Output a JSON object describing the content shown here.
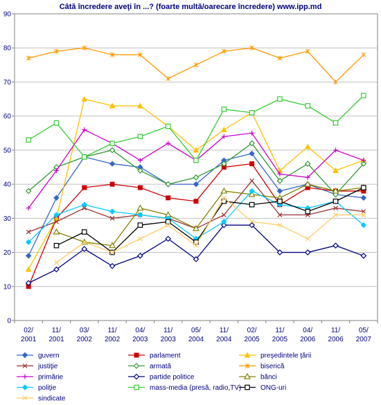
{
  "chart_data": {
    "type": "line",
    "title": "Câtă încredere aveţi în ...? (foarte multă/oarecare încredere) www.ipp.md",
    "xlabel": "",
    "ylabel": "",
    "ylim": [
      0,
      90
    ],
    "yticks": [
      0,
      10,
      20,
      30,
      40,
      50,
      60,
      70,
      80,
      90
    ],
    "grid": true,
    "legend_position": "bottom",
    "categories": [
      "02/\n2001",
      "11/\n2001",
      "03/\n2002",
      "11/\n2002",
      "04/\n2003",
      "11/\n2003",
      "05/\n2004",
      "11/\n2004",
      "02/\n2005",
      "11/\n2005",
      "04/\n2006",
      "11/\n2006",
      "05/\n2007"
    ],
    "series": [
      {
        "name": "guvern",
        "color": "#3366CC",
        "marker": "diamond",
        "values": [
          19,
          36,
          48,
          46,
          45,
          40,
          40,
          47,
          49,
          38,
          40,
          37,
          36
        ]
      },
      {
        "name": "parlament",
        "color": "#CC0000",
        "marker": "square",
        "values": [
          10,
          30,
          39,
          40,
          39,
          36,
          35,
          45,
          46,
          34,
          39,
          38,
          38
        ]
      },
      {
        "name": "preşedintele ţării",
        "color": "#FFC000",
        "marker": "triangle",
        "values": [
          15,
          30,
          65,
          63,
          63,
          57,
          50,
          56,
          61,
          44,
          51,
          44,
          47
        ]
      },
      {
        "name": "justiţie",
        "color": "#993333",
        "marker": "x",
        "values": [
          26,
          29,
          33,
          30,
          31,
          30,
          27,
          31,
          41,
          31,
          31,
          33,
          32
        ]
      },
      {
        "name": "armată",
        "color": "#339933",
        "marker": "diamond-open",
        "values": [
          38,
          45,
          48,
          50,
          44,
          40,
          42,
          46,
          52,
          41,
          46,
          37,
          46
        ]
      },
      {
        "name": "biserică",
        "color": "#FF9900",
        "marker": "star",
        "values": [
          77,
          79,
          80,
          78,
          78,
          71,
          75,
          79,
          80,
          77,
          79,
          70,
          78
        ]
      },
      {
        "name": "primărie",
        "color": "#CC00CC",
        "marker": "plus",
        "values": [
          33,
          44,
          56,
          52,
          47,
          52,
          47,
          54,
          55,
          43,
          42,
          50,
          47
        ]
      },
      {
        "name": "partide politice",
        "color": "#000080",
        "marker": "diamond-open",
        "values": [
          11,
          15,
          21,
          16,
          19,
          24,
          18,
          28,
          28,
          20,
          20,
          22,
          19
        ]
      },
      {
        "name": "bănci",
        "color": "#808000",
        "marker": "triangle-open",
        "values": [
          null,
          26,
          23,
          22,
          33,
          31,
          27,
          38,
          37,
          36,
          40,
          38,
          39
        ]
      },
      {
        "name": "poliţie",
        "color": "#00CCFF",
        "marker": "diamond",
        "values": [
          23,
          31,
          34,
          32,
          31,
          30,
          24,
          29,
          38,
          34,
          33,
          35,
          28
        ]
      },
      {
        "name": "mass-media (presă, radio,TV)",
        "color": "#33CC33",
        "marker": "square-open",
        "values": [
          53,
          58,
          48,
          52,
          54,
          57,
          47,
          62,
          61,
          65,
          63,
          58,
          66
        ]
      },
      {
        "name": "ONG-uri",
        "color": "#000000",
        "marker": "square-open",
        "values": [
          null,
          22,
          26,
          20,
          28,
          29,
          23,
          35,
          34,
          35,
          32,
          35,
          39
        ]
      },
      {
        "name": "sindicate",
        "color": "#FFCC66",
        "marker": "x",
        "values": [
          null,
          17,
          23,
          20,
          24,
          28,
          22,
          36,
          29,
          28,
          24,
          31,
          31
        ]
      }
    ]
  }
}
